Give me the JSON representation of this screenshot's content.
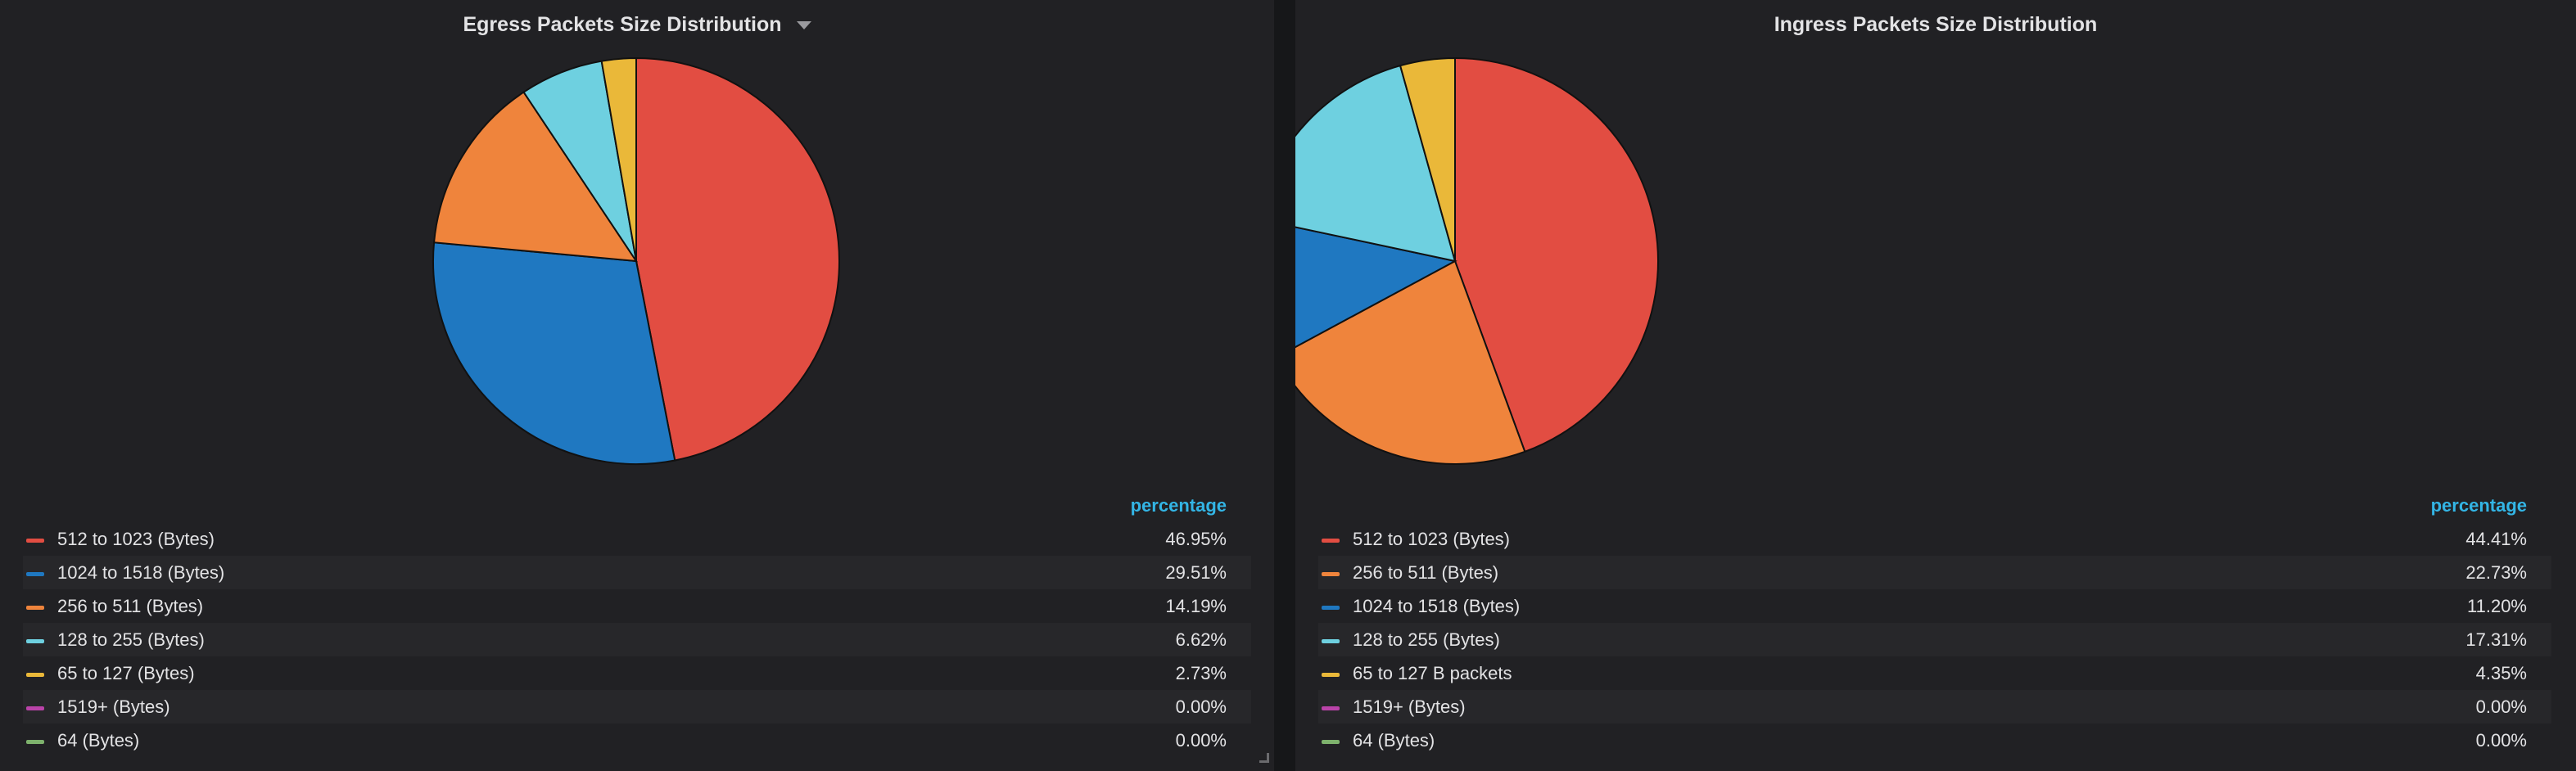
{
  "panels": [
    {
      "title": "Egress Packets Size Distribution",
      "legend_header": "percentage",
      "items": [
        {
          "label": "512 to 1023 (Bytes)",
          "value": "46.95%",
          "color": "#e24d42"
        },
        {
          "label": "1024 to 1518 (Bytes)",
          "value": "29.51%",
          "color": "#1f78c1"
        },
        {
          "label": "256 to 511 (Bytes)",
          "value": "14.19%",
          "color": "#ef843c"
        },
        {
          "label": "128 to 255 (Bytes)",
          "value": "6.62%",
          "color": "#6ed0e0"
        },
        {
          "label": "65 to 127 (Bytes)",
          "value": "2.73%",
          "color": "#eab839"
        },
        {
          "label": "1519+ (Bytes)",
          "value": "0.00%",
          "color": "#ba43a9"
        },
        {
          "label": "64 (Bytes)",
          "value": "0.00%",
          "color": "#7eb26d"
        }
      ]
    },
    {
      "title": "Ingress Packets Size Distribution",
      "legend_header": "percentage",
      "items": [
        {
          "label": "512 to 1023 (Bytes)",
          "value": "44.41%",
          "color": "#e24d42"
        },
        {
          "label": "256 to 511 (Bytes)",
          "value": "22.73%",
          "color": "#ef843c"
        },
        {
          "label": "1024 to 1518 (Bytes)",
          "value": "11.20%",
          "color": "#1f78c1"
        },
        {
          "label": "128 to 255 (Bytes)",
          "value": "17.31%",
          "color": "#6ed0e0"
        },
        {
          "label": "65 to 127 B packets",
          "value": "4.35%",
          "color": "#eab839"
        },
        {
          "label": "1519+ (Bytes)",
          "value": "0.00%",
          "color": "#ba43a9"
        },
        {
          "label": "64 (Bytes)",
          "value": "0.00%",
          "color": "#7eb26d"
        }
      ]
    }
  ],
  "chart_data": [
    {
      "type": "pie",
      "title": "Egress Packets Size Distribution",
      "categories": [
        "512 to 1023 (Bytes)",
        "1024 to 1518 (Bytes)",
        "256 to 511 (Bytes)",
        "128 to 255 (Bytes)",
        "65 to 127 (Bytes)",
        "1519+ (Bytes)",
        "64 (Bytes)"
      ],
      "values": [
        46.95,
        29.51,
        14.19,
        6.62,
        2.73,
        0.0,
        0.0
      ],
      "colors": [
        "#e24d42",
        "#1f78c1",
        "#ef843c",
        "#6ed0e0",
        "#eab839",
        "#ba43a9",
        "#7eb26d"
      ],
      "legend": "bottom"
    },
    {
      "type": "pie",
      "title": "Ingress Packets Size Distribution",
      "categories": [
        "512 to 1023 (Bytes)",
        "256 to 511 (Bytes)",
        "1024 to 1518 (Bytes)",
        "128 to 255 (Bytes)",
        "65 to 127 B packets",
        "1519+ (Bytes)",
        "64 (Bytes)"
      ],
      "values": [
        44.41,
        22.73,
        11.2,
        17.31,
        4.35,
        0.0,
        0.0
      ],
      "colors": [
        "#e24d42",
        "#ef843c",
        "#1f78c1",
        "#6ed0e0",
        "#eab839",
        "#ba43a9",
        "#7eb26d"
      ],
      "legend": "bottom"
    }
  ]
}
